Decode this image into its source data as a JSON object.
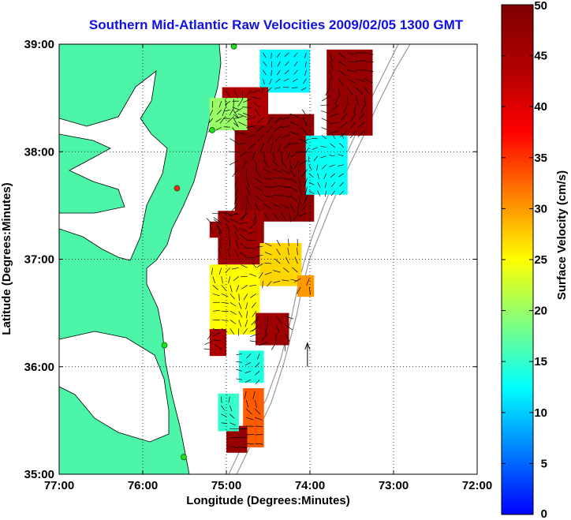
{
  "chart_data": {
    "type": "heatmap",
    "title": "Southern Mid-Atlantic Raw Velocities 2009/02/05 1300 GMT",
    "xlabel": "Longitude (Degrees:Minutes)",
    "ylabel": "Latitude (Degrees:Minutes)",
    "xlim": [
      -77,
      -72
    ],
    "ylim": [
      35,
      39
    ],
    "x_ticks": [
      -77,
      -76,
      -75,
      -74,
      -73,
      -72
    ],
    "x_tick_labels": [
      "77:00",
      "76:00",
      "75:00",
      "74:00",
      "73:00",
      "72:00"
    ],
    "y_ticks": [
      35,
      36,
      37,
      38,
      39
    ],
    "y_tick_labels": [
      "35:00",
      "36:00",
      "37:00",
      "38:00",
      "39:00"
    ],
    "grid": "dotted",
    "colorbar": {
      "label": "Surface Velocity (cm/s)",
      "range": [
        0,
        50
      ],
      "ticks": [
        0,
        5,
        10,
        15,
        20,
        25,
        30,
        35,
        40,
        45,
        50
      ],
      "tick_labels": [
        "0",
        "5",
        "10",
        "15",
        "20",
        "25",
        "30",
        "35",
        "40",
        "45",
        "50"
      ],
      "colormap": "jet",
      "position": "right"
    },
    "land_color": "#4cf5a8",
    "regions": [
      {
        "lon": [
          -74.9,
          -73.95
        ],
        "lat": [
          37.35,
          38.35
        ],
        "speed": 48
      },
      {
        "lon": [
          -73.8,
          -73.25
        ],
        "lat": [
          38.15,
          38.95
        ],
        "speed": 47
      },
      {
        "lon": [
          -74.6,
          -74.0
        ],
        "lat": [
          38.55,
          38.95
        ],
        "speed": 12
      },
      {
        "lon": [
          -75.05,
          -74.5
        ],
        "lat": [
          38.25,
          38.6
        ],
        "speed": 44
      },
      {
        "lon": [
          -75.2,
          -74.75
        ],
        "lat": [
          38.2,
          38.5
        ],
        "speed": 20
      },
      {
        "lon": [
          -74.05,
          -73.55
        ],
        "lat": [
          37.6,
          38.15
        ],
        "speed": 13
      },
      {
        "lon": [
          -75.1,
          -74.55
        ],
        "lat": [
          36.95,
          37.45
        ],
        "speed": 46
      },
      {
        "lon": [
          -75.2,
          -74.95
        ],
        "lat": [
          37.2,
          37.35
        ],
        "speed": 46
      },
      {
        "lon": [
          -74.6,
          -74.1
        ],
        "lat": [
          36.75,
          37.15
        ],
        "speed": 27
      },
      {
        "lon": [
          -74.15,
          -73.95
        ],
        "lat": [
          36.65,
          36.85
        ],
        "speed": 30
      },
      {
        "lon": [
          -75.2,
          -74.6
        ],
        "lat": [
          36.3,
          36.95
        ],
        "speed": 25
      },
      {
        "lon": [
          -74.65,
          -74.25
        ],
        "lat": [
          36.2,
          36.5
        ],
        "speed": 46
      },
      {
        "lon": [
          -75.2,
          -75.0
        ],
        "lat": [
          36.1,
          36.35
        ],
        "speed": 44
      },
      {
        "lon": [
          -74.85,
          -74.55
        ],
        "lat": [
          35.85,
          36.15
        ],
        "speed": 14
      },
      {
        "lon": [
          -74.8,
          -74.55
        ],
        "lat": [
          35.25,
          35.8
        ],
        "speed": 33
      },
      {
        "lon": [
          -75.0,
          -74.75
        ],
        "lat": [
          35.2,
          35.45
        ],
        "speed": 47
      },
      {
        "lon": [
          -75.1,
          -74.85
        ],
        "lat": [
          35.4,
          35.75
        ],
        "speed": 15
      }
    ],
    "reference_vector": {
      "lon": -74.03,
      "lat": 36.0,
      "length_deg": 0.22
    },
    "stations": [
      {
        "lon": -74.91,
        "lat": 38.98
      },
      {
        "lon": -75.17,
        "lat": 38.2
      },
      {
        "lon": -75.59,
        "lat": 37.66
      },
      {
        "lon": -75.74,
        "lat": 36.2
      },
      {
        "lon": -75.51,
        "lat": 35.16
      }
    ]
  }
}
